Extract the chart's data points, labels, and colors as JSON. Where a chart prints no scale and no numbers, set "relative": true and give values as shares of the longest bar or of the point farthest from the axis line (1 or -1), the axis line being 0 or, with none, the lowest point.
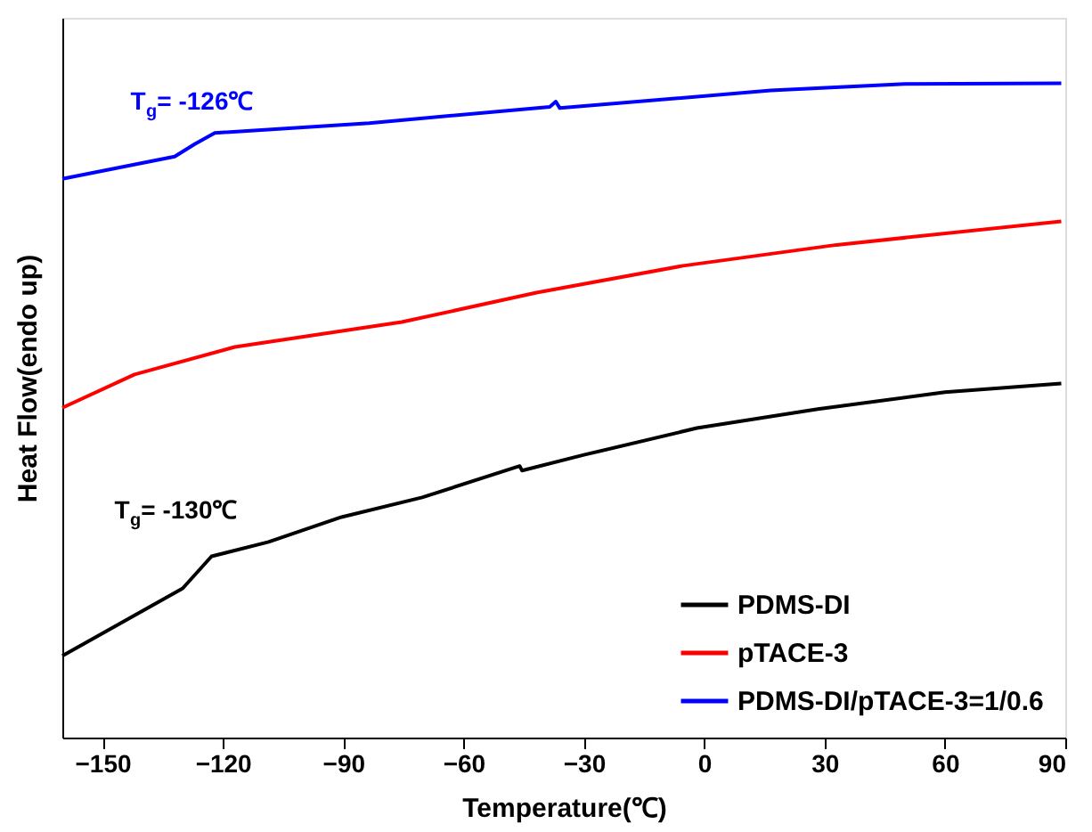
{
  "chart_data": {
    "type": "line",
    "relative": true,
    "xlabel": "Temperature(℃)",
    "ylabel": "Heat Flow(endo up)",
    "xlim": [
      -160,
      90
    ],
    "xticks": [
      -150,
      -120,
      -90,
      -60,
      -30,
      0,
      30,
      60,
      90
    ],
    "grid": false,
    "legend": "bottom right",
    "line_style": "solid",
    "marker": "none",
    "series": [
      {
        "name": "PDMS-DI",
        "color": "#000000",
        "x": [
          -160,
          -130,
          -122.8,
          -108.6,
          -90.4,
          -70.3,
          -46,
          -45.4,
          -30,
          -1.8,
          28.3,
          60,
          89
        ],
        "values": [
          0.125,
          0.228,
          0.277,
          0.299,
          0.337,
          0.367,
          0.415,
          0.408,
          0.432,
          0.473,
          0.502,
          0.528,
          0.541
        ]
      },
      {
        "name": "pTACE-3",
        "color": "#ff0000",
        "x": [
          -160,
          -142,
          -117,
          -75.4,
          -41.8,
          -5.3,
          33,
          89
        ],
        "values": [
          0.504,
          0.555,
          0.597,
          0.635,
          0.68,
          0.721,
          0.753,
          0.789
        ]
      },
      {
        "name": "PDMS-DI/pTACE-3=1/0.6",
        "color": "#0000ff",
        "x": [
          -160,
          -132,
          -127,
          -122,
          -83.5,
          -38.5,
          -37,
          -36,
          16.6,
          50,
          89
        ],
        "values": [
          0.854,
          0.888,
          0.907,
          0.924,
          0.939,
          0.964,
          0.972,
          0.962,
          0.989,
          0.999,
          1.0
        ]
      }
    ],
    "annotations": [
      "T$_{g}$= -126℃",
      "T$_{g}$= -130℃"
    ]
  }
}
